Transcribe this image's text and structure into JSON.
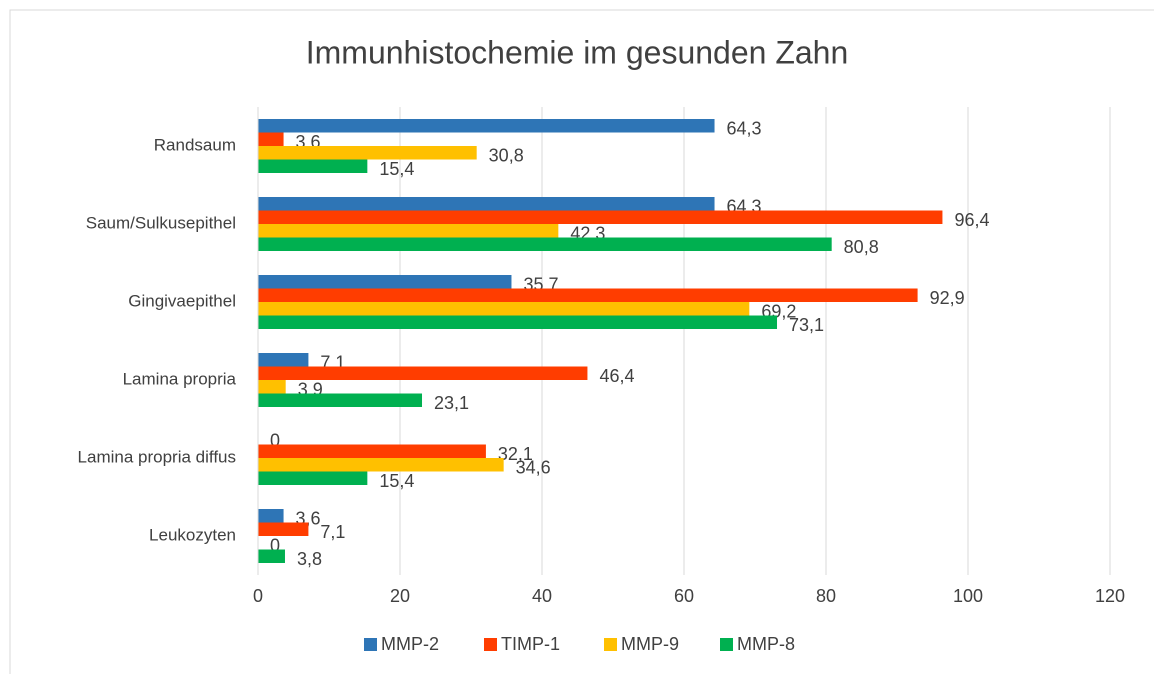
{
  "chart_data": {
    "type": "hbar",
    "title": "Immunhistochemie im gesunden Zahn",
    "categories": [
      "Randsaum",
      "Saum/Sulkusepithel",
      "Gingivaepithel",
      "Lamina propria",
      "Lamina propria diffus",
      "Leukozyten"
    ],
    "series": [
      {
        "name": "MMP-2",
        "color": "#2e75b6",
        "values": [
          64.3,
          64.3,
          35.7,
          7.1,
          0,
          3.6
        ],
        "value_labels": [
          "64,3",
          "64,3",
          "35,7",
          "7,1",
          "0",
          "3,6"
        ]
      },
      {
        "name": "TIMP-1",
        "color": "#ff3d00",
        "values": [
          3.6,
          96.4,
          92.9,
          46.4,
          32.1,
          7.1
        ],
        "value_labels": [
          "3,6",
          "96,4",
          "92,9",
          "46,4",
          "32,1",
          "7,1"
        ]
      },
      {
        "name": "MMP-9",
        "color": "#ffc000",
        "values": [
          30.8,
          42.3,
          69.2,
          3.9,
          34.6,
          0
        ],
        "value_labels": [
          "30,8",
          "42,3",
          "69,2",
          "3,9",
          "34,6",
          "0"
        ]
      },
      {
        "name": "MMP-8",
        "color": "#00b050",
        "values": [
          15.4,
          80.8,
          73.1,
          23.1,
          15.4,
          3.8
        ],
        "value_labels": [
          "15,4",
          "80,8",
          "73,1",
          "23,1",
          "15,4",
          "3,8"
        ]
      }
    ],
    "xlim": [
      0,
      120
    ],
    "xticks": [
      0,
      20,
      40,
      60,
      80,
      100,
      120
    ],
    "grid": true,
    "legend": "bottom"
  }
}
